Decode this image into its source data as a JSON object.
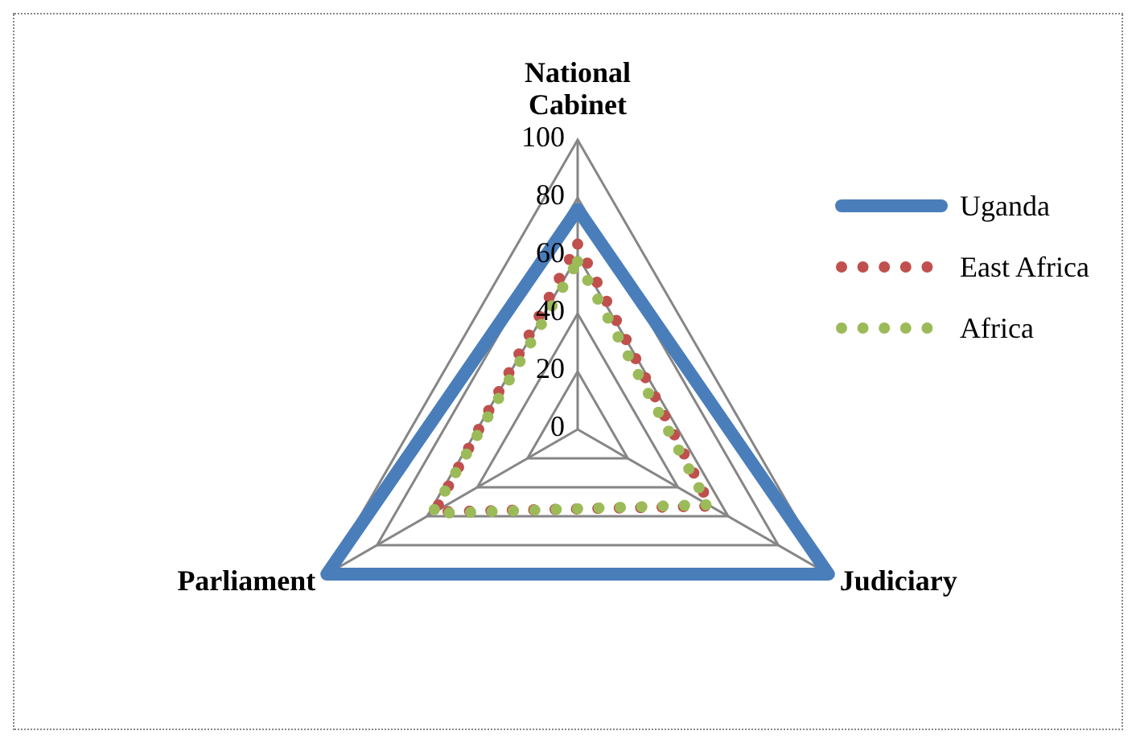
{
  "chart_data": {
    "type": "radar",
    "categories": [
      "National Cabinet",
      "Judiciary",
      "Parliament"
    ],
    "series": [
      {
        "name": "Uganda",
        "color": "#4a7ebb",
        "values": [
          76,
          100,
          100
        ],
        "line_style": "solid"
      },
      {
        "name": "East Africa",
        "color": "#c0504d",
        "values": [
          64,
          53,
          57
        ],
        "line_style": "dotted"
      },
      {
        "name": "Africa",
        "color": "#9bbb59",
        "values": [
          58,
          52,
          58
        ],
        "line_style": "dotted"
      }
    ],
    "ylim": [
      0,
      100
    ],
    "yticks": [
      0,
      20,
      40,
      60,
      80,
      100
    ],
    "grid": true,
    "legend": "right"
  }
}
